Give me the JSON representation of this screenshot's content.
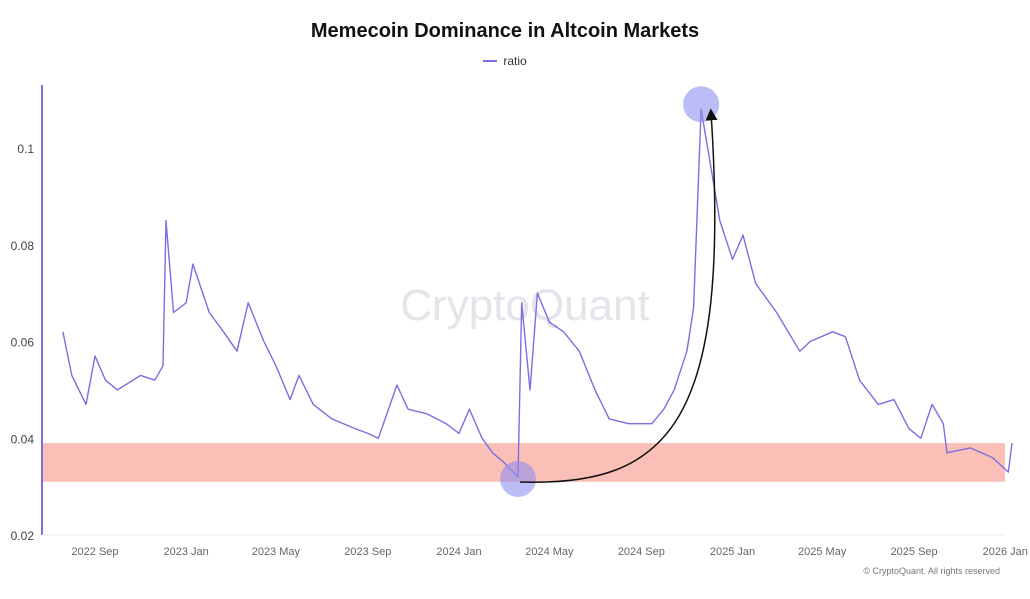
{
  "chart_data": {
    "type": "line",
    "title": "Memecoin Dominance in Altcoin Markets",
    "legend": [
      "ratio"
    ],
    "legend_placement": "top-center",
    "watermark": "CryptoQuant",
    "footer": "© CryptoQuant. All rights reserved",
    "ylim": [
      0.02,
      0.115
    ],
    "y_ticks": [
      "0.1",
      "0.08",
      "0.06",
      "0.04",
      "0.02"
    ],
    "y_tick_values": [
      0.1,
      0.08,
      0.06,
      0.04,
      0.02
    ],
    "x_ticks": [
      "2022 Sep",
      "2023 Jan",
      "2023 May",
      "2023 Sep",
      "2024 Jan",
      "2024 May",
      "2024 Sep",
      "2025 Jan",
      "2025 May",
      "2025 Sep",
      "2026 Jan"
    ],
    "x_tick_dates": [
      "2022-09-01",
      "2023-01-01",
      "2023-05-01",
      "2023-09-01",
      "2024-01-01",
      "2024-05-01",
      "2024-09-01",
      "2025-01-01",
      "2025-05-01",
      "2025-09-01",
      "2026-01-01"
    ],
    "grid": false,
    "colors": {
      "line": "#7b6fe0",
      "band": "#f9b8ae",
      "highlight": "#8f8ff0"
    },
    "highlight_band": [
      0.031,
      0.039
    ],
    "highlight_points": [
      {
        "date": "2024-03-20",
        "value": 0.032
      },
      {
        "date": "2024-11-20",
        "value": 0.108
      }
    ],
    "series": [
      {
        "name": "ratio",
        "x": [
          "2022-07-20",
          "2022-08-01",
          "2022-08-20",
          "2022-09-01",
          "2022-09-15",
          "2022-10-01",
          "2022-11-01",
          "2022-11-20",
          "2022-12-01",
          "2022-12-05",
          "2022-12-15",
          "2023-01-01",
          "2023-01-10",
          "2023-02-01",
          "2023-02-20",
          "2023-03-10",
          "2023-03-25",
          "2023-04-15",
          "2023-05-01",
          "2023-05-20",
          "2023-06-01",
          "2023-06-20",
          "2023-07-15",
          "2023-08-15",
          "2023-09-01",
          "2023-09-15",
          "2023-10-01",
          "2023-10-10",
          "2023-10-25",
          "2023-11-20",
          "2023-12-15",
          "2024-01-01",
          "2024-01-15",
          "2024-02-01",
          "2024-02-15",
          "2024-03-01",
          "2024-03-20",
          "2024-03-25",
          "2024-04-05",
          "2024-04-15",
          "2024-05-01",
          "2024-05-20",
          "2024-06-10",
          "2024-07-01",
          "2024-07-20",
          "2024-08-15",
          "2024-09-15",
          "2024-10-01",
          "2024-10-15",
          "2024-11-01",
          "2024-11-10",
          "2024-11-20",
          "2024-12-01",
          "2024-12-15",
          "2025-01-01",
          "2025-01-15",
          "2025-02-01",
          "2025-03-01",
          "2025-04-01",
          "2025-04-15",
          "2025-05-15",
          "2025-06-01",
          "2025-06-20",
          "2025-07-15",
          "2025-08-05",
          "2025-08-25",
          "2025-09-10",
          "2025-09-25",
          "2025-10-10",
          "2025-10-15",
          "2025-11-15",
          "2025-12-15",
          "2026-01-05",
          "2026-01-10"
        ],
        "values": [
          0.062,
          0.053,
          0.047,
          0.057,
          0.052,
          0.05,
          0.053,
          0.052,
          0.055,
          0.085,
          0.066,
          0.068,
          0.076,
          0.066,
          0.062,
          0.058,
          0.068,
          0.06,
          0.055,
          0.048,
          0.053,
          0.047,
          0.044,
          0.042,
          0.041,
          0.04,
          0.047,
          0.051,
          0.046,
          0.045,
          0.043,
          0.041,
          0.046,
          0.04,
          0.037,
          0.035,
          0.032,
          0.068,
          0.05,
          0.07,
          0.064,
          0.062,
          0.058,
          0.05,
          0.044,
          0.043,
          0.043,
          0.046,
          0.05,
          0.058,
          0.067,
          0.108,
          0.098,
          0.085,
          0.077,
          0.082,
          0.072,
          0.066,
          0.058,
          0.06,
          0.062,
          0.061,
          0.052,
          0.047,
          0.048,
          0.042,
          0.04,
          0.047,
          0.043,
          0.037,
          0.038,
          0.036,
          0.033,
          0.039
        ]
      }
    ]
  }
}
